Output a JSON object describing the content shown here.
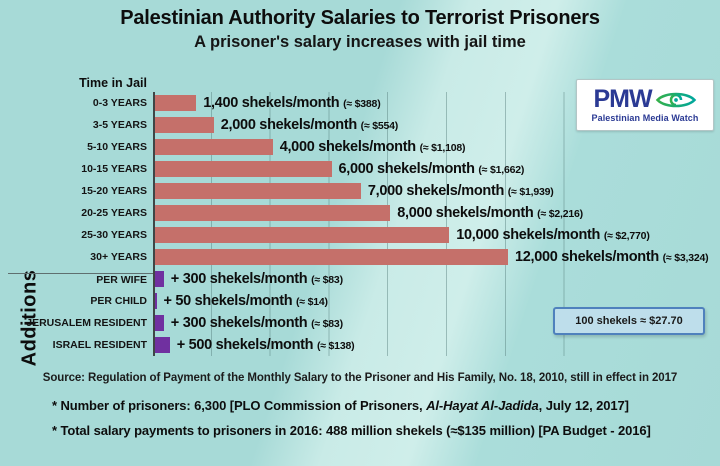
{
  "title": "Palestinian Authority Salaries to Terrorist Prisoners",
  "subtitle": "A prisoner's salary increases with jail time",
  "logo": {
    "acronym": "PMW",
    "name": "Palestinian Media Watch",
    "eye_icon": "eye-swirl-icon"
  },
  "note": "100 shekels ≈ $27.70",
  "source": "Source: Regulation of Payment of the Monthly Salary to the Prisoner and His Family, No. 18, 2010, still in effect in 2017",
  "footnotes": [
    {
      "parts": [
        {
          "t": "* Number of prisoners: 6,300 [PLO Commission of Prisoners, ",
          "i": false
        },
        {
          "t": "Al-Hayat Al-Jadida",
          "i": true
        },
        {
          "t": ", July 12, 2017]",
          "i": false
        }
      ]
    },
    {
      "parts": [
        {
          "t": "* Total salary payments to prisoners in 2016: 488 million shekels (≈$135 million) [PA Budget - 2016]",
          "i": false
        }
      ]
    }
  ],
  "colors": {
    "background": "#a7dad7",
    "background_band": "#c9ebe7",
    "salary_bar": "#c5706a",
    "additions_bar": "#7030a0",
    "note_border": "#4f81bd",
    "note_bg": "#bedeeb",
    "logo_blue": "#2b3a94",
    "logo_teal": "#00a79d",
    "logo_green": "#34b04a"
  },
  "chart_data": {
    "type": "bar",
    "orientation": "horizontal",
    "xmax": 12000,
    "gridline_interval_shekels": 2000,
    "legend_position": "none",
    "grid": "vertical-faint",
    "groups": [
      {
        "name": "Time in Jail",
        "bar_color": "#c5706a",
        "rows": [
          {
            "label": "0-3 YEARS",
            "value": 1400,
            "amount_text": "1,400 shekels/month",
            "usd_text": "(≈ $388)"
          },
          {
            "label": "3-5 YEARS",
            "value": 2000,
            "amount_text": "2,000 shekels/month",
            "usd_text": "(≈ $554)"
          },
          {
            "label": "5-10 YEARS",
            "value": 4000,
            "amount_text": "4,000 shekels/month",
            "usd_text": "(≈ $1,108)"
          },
          {
            "label": "10-15 YEARS",
            "value": 6000,
            "amount_text": "6,000 shekels/month",
            "usd_text": "(≈ $1,662)"
          },
          {
            "label": "15-20 YEARS",
            "value": 7000,
            "amount_text": "7,000 shekels/month",
            "usd_text": "(≈ $1,939)"
          },
          {
            "label": "20-25 YEARS",
            "value": 8000,
            "amount_text": "8,000 shekels/month",
            "usd_text": "(≈ $2,216)"
          },
          {
            "label": "25-30 YEARS",
            "value": 10000,
            "amount_text": "10,000 shekels/month",
            "usd_text": "(≈ $2,770)"
          },
          {
            "label": "30+ YEARS",
            "value": 12000,
            "amount_text": "12,000 shekels/month",
            "usd_text": "(≈ $3,324)"
          }
        ]
      },
      {
        "name": "Additions",
        "bar_color": "#7030a0",
        "rows": [
          {
            "label": "PER WIFE",
            "value": 300,
            "amount_text": "+ 300 shekels/month",
            "usd_text": "(≈ $83)"
          },
          {
            "label": "PER CHILD",
            "value": 50,
            "amount_text": "+ 50 shekels/month",
            "usd_text": "(≈ $14)"
          },
          {
            "label": "JERUSALEM RESIDENT",
            "value": 300,
            "amount_text": "+ 300 shekels/month",
            "usd_text": "(≈ $83)"
          },
          {
            "label": "ISRAEL RESIDENT",
            "value": 500,
            "amount_text": "+ 500 shekels/month",
            "usd_text": "(≈ $138)"
          }
        ]
      }
    ]
  }
}
